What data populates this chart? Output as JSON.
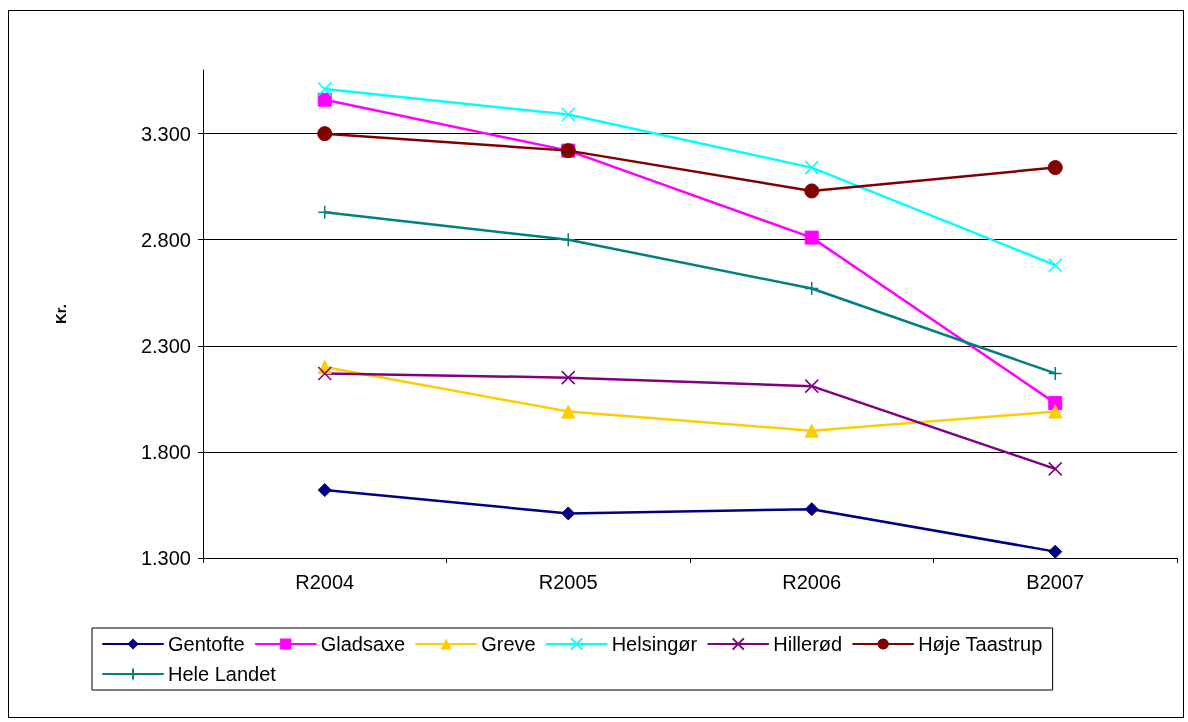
{
  "chart_data": {
    "type": "line",
    "ylabel": "Kr.",
    "categories": [
      "R2004",
      "R2005",
      "R2006",
      "B2007"
    ],
    "ylim": [
      1300,
      3600
    ],
    "yticks": [
      {
        "value": 1300,
        "label": "1.300"
      },
      {
        "value": 1800,
        "label": "1.800"
      },
      {
        "value": 2300,
        "label": "2.300"
      },
      {
        "value": 2800,
        "label": "2.800"
      },
      {
        "value": 3300,
        "label": "3.300"
      }
    ],
    "grid": "y",
    "legend": "bottom",
    "series": [
      {
        "name": "Gentofte",
        "color": "#000080",
        "marker": "diamond",
        "values": [
          1620,
          1510,
          1530,
          1330
        ]
      },
      {
        "name": "Gladsaxe",
        "color": "#ff00ff",
        "marker": "square",
        "values": [
          3460,
          3220,
          2810,
          2030
        ]
      },
      {
        "name": "Greve",
        "color": "#ffcc00",
        "marker": "triangle",
        "values": [
          2200,
          1990,
          1900,
          1990
        ]
      },
      {
        "name": "Helsingør",
        "color": "#00ffff",
        "marker": "cross",
        "values": [
          3510,
          3390,
          3140,
          2680
        ]
      },
      {
        "name": "Hillerød",
        "color": "#800080",
        "marker": "cross",
        "values": [
          2170,
          2150,
          2110,
          1720
        ]
      },
      {
        "name": "Høje Taastrup",
        "color": "#800000",
        "marker": "circle",
        "values": [
          3300,
          3220,
          3030,
          3140
        ]
      },
      {
        "name": "Hele Landet",
        "color": "#008080",
        "marker": "plus",
        "values": [
          2930,
          2800,
          2570,
          2170
        ]
      }
    ]
  }
}
